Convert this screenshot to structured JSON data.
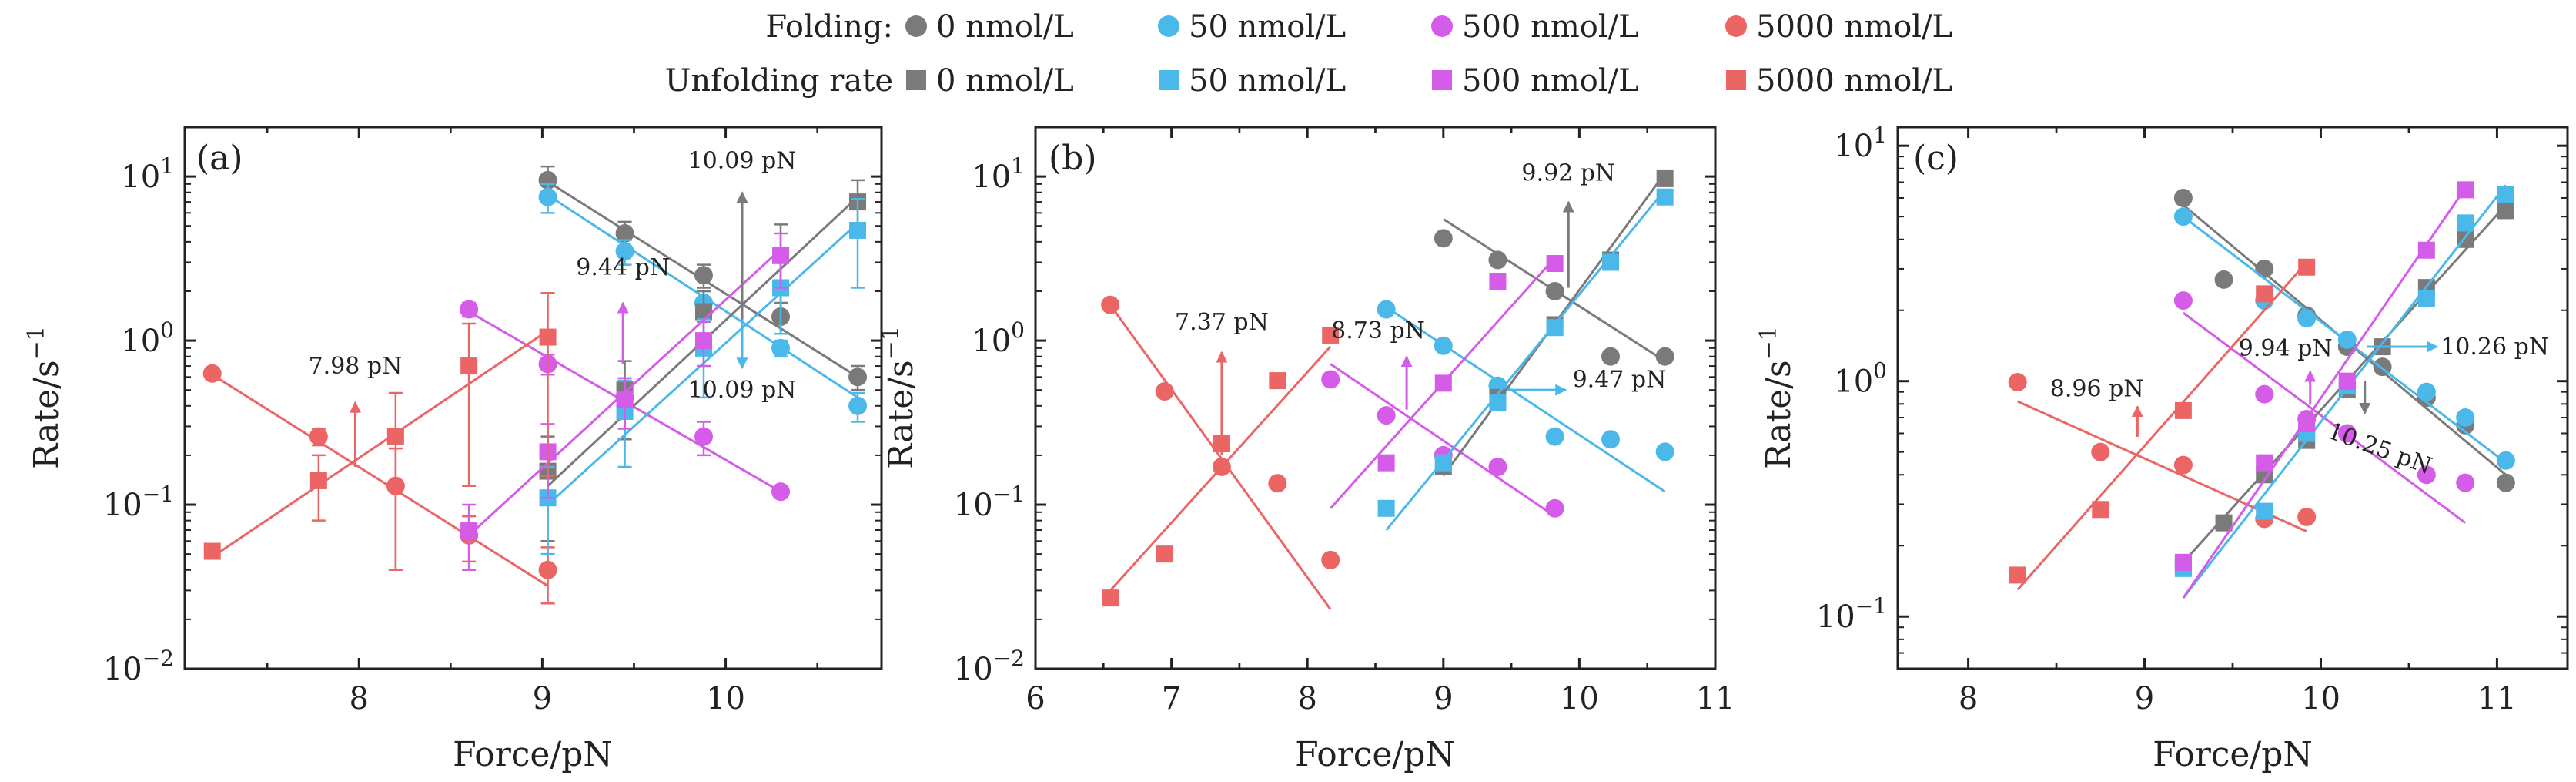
{
  "colors": {
    "c0": "#7a7a7a",
    "c50": "#4bb8ea",
    "c500": "#d45ce8",
    "c5000": "#ec6565",
    "axis": "#222222"
  },
  "legend": {
    "folding_label": "Folding:",
    "unfolding_label": "Unfolding rate",
    "entries": [
      {
        "label": "0 nmol/L",
        "color_key": "c0"
      },
      {
        "label": "50 nmol/L",
        "color_key": "c50"
      },
      {
        "label": "500 nmol/L",
        "color_key": "c500"
      },
      {
        "label": "5000 nmol/L",
        "color_key": "c5000"
      }
    ]
  },
  "chart_data": [
    {
      "panel": "(a)",
      "type": "scatter",
      "xlabel": "Force/pN",
      "ylabel": "Rate/s",
      "ylabel_sup": "−1",
      "yscale": "log",
      "xlim": [
        7.05,
        10.85
      ],
      "ylim": [
        0.01,
        20
      ],
      "xticks": [
        8,
        9,
        10
      ],
      "yticks": [
        {
          "v": 0.01,
          "base": "10",
          "exp": "−2"
        },
        {
          "v": 0.1,
          "base": "10",
          "exp": "−1"
        },
        {
          "v": 1,
          "base": "10",
          "exp": "0"
        },
        {
          "v": 10,
          "base": "10",
          "exp": "1"
        }
      ],
      "folding": [
        {
          "name": "0 nmol/L",
          "color_key": "c0",
          "x": [
            9.03,
            9.45,
            9.88,
            10.3,
            10.72
          ],
          "y": [
            9.5,
            4.5,
            2.5,
            1.4,
            0.6
          ],
          "err": [
            2.0,
            0.8,
            0.4,
            0.3,
            0.1
          ],
          "fit": [
            [
              9.03,
              9.3
            ],
            [
              10.72,
              0.6
            ]
          ]
        },
        {
          "name": "50 nmol/L",
          "color_key": "c50",
          "x": [
            9.03,
            9.45,
            9.88,
            10.3,
            10.72
          ],
          "y": [
            7.5,
            3.5,
            1.7,
            0.9,
            0.4
          ],
          "err": [
            1.5,
            0.6,
            0.3,
            0.1,
            0.08
          ],
          "fit": [
            [
              9.03,
              7.7
            ],
            [
              10.72,
              0.45
            ]
          ]
        },
        {
          "name": "500 nmol/L",
          "color_key": "c500",
          "x": [
            8.6,
            9.03,
            9.45,
            9.88,
            10.3
          ],
          "y": [
            1.55,
            0.72,
            0.45,
            0.26,
            0.12
          ],
          "err": [
            0.15,
            0.1,
            0.08,
            0.06,
            0.01
          ],
          "fit": [
            [
              8.6,
              1.5
            ],
            [
              10.3,
              0.12
            ]
          ]
        },
        {
          "name": "5000 nmol/L",
          "color_key": "c5000",
          "x": [
            7.2,
            7.78,
            8.2,
            8.6,
            9.03
          ],
          "y": [
            0.63,
            0.26,
            0.13,
            0.065,
            0.04
          ],
          "err": [
            0.05,
            0.03,
            0.09,
            0.02,
            0.015
          ],
          "fit": [
            [
              7.2,
              0.62
            ],
            [
              9.03,
              0.032
            ]
          ]
        }
      ],
      "unfolding": [
        {
          "name": "0 nmol/L",
          "color_key": "c0",
          "x": [
            9.03,
            9.45,
            9.88,
            10.3,
            10.72
          ],
          "y": [
            0.16,
            0.5,
            1.5,
            3.3,
            7.0
          ],
          "err": [
            0.1,
            0.25,
            0.5,
            1.8,
            2.5
          ],
          "fit": [
            [
              9.03,
              0.13
            ],
            [
              10.72,
              7.5
            ]
          ]
        },
        {
          "name": "50 nmol/L",
          "color_key": "c50",
          "x": [
            9.03,
            9.45,
            9.88,
            10.3,
            10.72
          ],
          "y": [
            0.11,
            0.37,
            0.9,
            2.1,
            4.7
          ],
          "err": [
            0.06,
            0.2,
            0.45,
            1.0,
            2.6
          ],
          "fit": [
            [
              9.03,
              0.1
            ],
            [
              10.72,
              5.2
            ]
          ]
        },
        {
          "name": "500 nmol/L",
          "color_key": "c500",
          "x": [
            8.6,
            9.03,
            9.45,
            9.88,
            10.3
          ],
          "y": [
            0.07,
            0.21,
            0.44,
            1.0,
            3.3
          ],
          "err": [
            0.03,
            0.1,
            0.15,
            0.3,
            1.2
          ],
          "fit": [
            [
              8.6,
              0.065
            ],
            [
              10.3,
              3.6
            ]
          ]
        },
        {
          "name": "5000 nmol/L",
          "color_key": "c5000",
          "x": [
            7.2,
            7.78,
            8.2,
            8.6,
            9.03
          ],
          "y": [
            0.052,
            0.14,
            0.26,
            0.7,
            1.05
          ],
          "err": [
            0.004,
            0.06,
            0.22,
            0.57,
            0.9
          ],
          "fit": [
            [
              7.2,
              0.048
            ],
            [
              9.03,
              1.15
            ]
          ]
        }
      ],
      "annotations": [
        {
          "text": "7.98 pN",
          "color_key": "c5000",
          "x": 7.98,
          "y0": 0.17,
          "y1": 0.42,
          "text_x": 7.98,
          "text_y": 0.7,
          "anchor": "middle"
        },
        {
          "text": "9.44 pN",
          "color_key": "c500",
          "x": 9.44,
          "y0": 0.72,
          "y1": 1.7,
          "text_x": 9.44,
          "text_y": 2.8,
          "anchor": "middle"
        },
        {
          "text": "10.09 pN",
          "color_key": "c0",
          "x": 10.09,
          "y0": 1.2,
          "y1": 8.0,
          "text_x": 10.09,
          "text_y": 12.5,
          "anchor": "middle"
        },
        {
          "text": "10.09 pN",
          "color_key": "c50",
          "x": 10.09,
          "y0": 1.35,
          "y1": 0.68,
          "text_x": 10.09,
          "text_y": 0.5,
          "anchor": "middle"
        }
      ]
    },
    {
      "panel": "(b)",
      "type": "scatter",
      "xlabel": "Force/pN",
      "ylabel": "Rate/s",
      "ylabel_sup": "−1",
      "yscale": "log",
      "xlim": [
        6.0,
        11.0
      ],
      "ylim": [
        0.01,
        20
      ],
      "xticks": [
        6,
        7,
        8,
        9,
        10,
        11
      ],
      "yticks": [
        {
          "v": 0.01,
          "base": "10",
          "exp": "−2"
        },
        {
          "v": 0.1,
          "base": "10",
          "exp": "−1"
        },
        {
          "v": 1,
          "base": "10",
          "exp": "0"
        },
        {
          "v": 10,
          "base": "10",
          "exp": "1"
        }
      ],
      "folding": [
        {
          "name": "0 nmol/L",
          "color_key": "c0",
          "x": [
            9.0,
            9.4,
            9.82,
            10.23,
            10.63
          ],
          "y": [
            4.2,
            3.1,
            2.0,
            0.8,
            0.8
          ],
          "err": [],
          "fit": [
            [
              9.0,
              5.5
            ],
            [
              10.63,
              0.75
            ]
          ]
        },
        {
          "name": "50 nmol/L",
          "color_key": "c50",
          "x": [
            8.58,
            9.0,
            9.4,
            9.82,
            10.23,
            10.63
          ],
          "y": [
            1.55,
            0.93,
            0.53,
            0.26,
            0.25,
            0.21
          ],
          "err": [],
          "fit": [
            [
              8.58,
              1.6
            ],
            [
              10.63,
              0.12
            ]
          ]
        },
        {
          "name": "500 nmol/L",
          "color_key": "c500",
          "x": [
            8.17,
            8.58,
            9.0,
            9.4,
            9.82
          ],
          "y": [
            0.58,
            0.35,
            0.2,
            0.17,
            0.095
          ],
          "err": [],
          "fit": [
            [
              8.17,
              0.72
            ],
            [
              9.82,
              0.085
            ]
          ]
        },
        {
          "name": "5000 nmol/L",
          "color_key": "c5000",
          "x": [
            6.55,
            6.95,
            7.37,
            7.78,
            8.17
          ],
          "y": [
            1.65,
            0.49,
            0.17,
            0.135,
            0.046
          ],
          "err": [],
          "fit": [
            [
              6.55,
              1.65
            ],
            [
              8.17,
              0.023
            ]
          ]
        }
      ],
      "unfolding": [
        {
          "name": "0 nmol/L",
          "color_key": "c0",
          "x": [
            9.0,
            9.4,
            9.82,
            10.23,
            10.63
          ],
          "y": [
            0.17,
            0.45,
            1.25,
            3.1,
            9.7
          ],
          "err": [],
          "fit": [
            [
              9.0,
              0.15
            ],
            [
              10.63,
              10.5
            ]
          ]
        },
        {
          "name": "50 nmol/L",
          "color_key": "c50",
          "x": [
            8.58,
            9.0,
            9.4,
            9.82,
            10.23,
            10.63
          ],
          "y": [
            0.095,
            0.18,
            0.42,
            1.2,
            3.0,
            7.5
          ],
          "err": [],
          "fit": [
            [
              8.58,
              0.07
            ],
            [
              10.63,
              8.3
            ]
          ]
        },
        {
          "name": "500 nmol/L",
          "color_key": "c500",
          "x": [
            8.58,
            9.0,
            9.4,
            9.82
          ],
          "y": [
            0.18,
            0.55,
            2.3,
            2.95
          ],
          "err": [],
          "fit": [
            [
              8.17,
              0.095
            ],
            [
              9.82,
              3.2
            ]
          ]
        },
        {
          "name": "5000 nmol/L",
          "color_key": "c5000",
          "x": [
            6.55,
            6.95,
            7.37,
            7.78,
            8.17
          ],
          "y": [
            0.027,
            0.05,
            0.235,
            0.57,
            1.08
          ],
          "err": [],
          "fit": [
            [
              6.55,
              0.03
            ],
            [
              8.17,
              0.92
            ]
          ]
        }
      ],
      "annotations": [
        {
          "text": "7.37 pN",
          "color_key": "c5000",
          "x": 7.37,
          "y0": 0.2,
          "y1": 0.85,
          "text_x": 7.37,
          "text_y": 1.3,
          "anchor": "middle"
        },
        {
          "text": "8.73 pN",
          "color_key": "c500",
          "x": 8.73,
          "y0": 0.38,
          "y1": 0.8,
          "text_x": 8.52,
          "text_y": 1.15,
          "anchor": "middle"
        },
        {
          "text": "9.92 pN",
          "color_key": "c0",
          "x": 9.92,
          "y0": 2.1,
          "y1": 7.0,
          "text_x": 9.92,
          "text_y": 10.5,
          "anchor": "middle"
        },
        {
          "text": "9.47 pN",
          "color_key": "c50",
          "x": 9.47,
          "y0": 0.5,
          "x1": 9.9,
          "text_x": 9.95,
          "text_y": 0.58,
          "anchor": "start",
          "horizontal": true
        }
      ]
    },
    {
      "panel": "(c)",
      "type": "scatter",
      "xlabel": "Force/pN",
      "ylabel": "Rate/s",
      "ylabel_sup": "−1",
      "yscale": "log",
      "xlim": [
        7.6,
        11.4
      ],
      "ylim": [
        0.06,
        12
      ],
      "xticks": [
        8,
        9,
        10,
        11
      ],
      "yticks": [
        {
          "v": 0.1,
          "base": "10",
          "exp": "−1"
        },
        {
          "v": 1,
          "base": "10",
          "exp": "0"
        },
        {
          "v": 10,
          "base": "10",
          "exp": "1"
        }
      ],
      "folding": [
        {
          "name": "0 nmol/L",
          "color_key": "c0",
          "x": [
            9.22,
            9.45,
            9.68,
            9.92,
            10.15,
            10.35,
            10.6,
            10.82,
            11.05
          ],
          "y": [
            6.0,
            2.7,
            3.0,
            1.9,
            1.4,
            1.15,
            0.85,
            0.65,
            0.37
          ],
          "err": [],
          "fit": [
            [
              9.22,
              5.6
            ],
            [
              11.05,
              0.4
            ]
          ]
        },
        {
          "name": "50 nmol/L",
          "color_key": "c50",
          "x": [
            9.22,
            9.68,
            9.92,
            10.15,
            10.6,
            10.82,
            11.05
          ],
          "y": [
            5.0,
            2.2,
            1.85,
            1.5,
            0.9,
            0.7,
            0.46
          ],
          "err": [],
          "fit": [
            [
              9.22,
              5.0
            ],
            [
              11.05,
              0.45
            ]
          ]
        },
        {
          "name": "500 nmol/L",
          "color_key": "c500",
          "x": [
            9.22,
            9.68,
            9.92,
            10.15,
            10.6,
            10.82
          ],
          "y": [
            2.2,
            0.88,
            0.69,
            0.6,
            0.4,
            0.37
          ],
          "err": [],
          "fit": [
            [
              9.22,
              1.95
            ],
            [
              10.82,
              0.25
            ]
          ]
        },
        {
          "name": "5000 nmol/L",
          "color_key": "c5000",
          "x": [
            8.28,
            8.75,
            9.22,
            9.68,
            9.92
          ],
          "y": [
            0.99,
            0.5,
            0.44,
            0.26,
            0.265
          ],
          "err": [],
          "fit": [
            [
              8.28,
              0.82
            ],
            [
              9.92,
              0.23
            ]
          ]
        }
      ],
      "unfolding": [
        {
          "name": "0 nmol/L",
          "color_key": "c0",
          "x": [
            9.22,
            9.45,
            9.68,
            9.92,
            10.15,
            10.35,
            10.6,
            10.82,
            11.05
          ],
          "y": [
            0.165,
            0.25,
            0.4,
            0.56,
            0.92,
            1.4,
            2.5,
            4.0,
            5.3
          ],
          "err": [],
          "fit": [
            [
              9.22,
              0.17
            ],
            [
              11.05,
              5.6
            ]
          ]
        },
        {
          "name": "50 nmol/L",
          "color_key": "c50",
          "x": [
            9.22,
            9.68,
            9.92,
            10.15,
            10.6,
            10.82,
            11.05
          ],
          "y": [
            0.16,
            0.28,
            0.6,
            0.96,
            2.25,
            4.7,
            6.2
          ],
          "err": [],
          "fit": [
            [
              9.22,
              0.12
            ],
            [
              11.05,
              6.8
            ]
          ]
        },
        {
          "name": "500 nmol/L",
          "color_key": "c500",
          "x": [
            9.22,
            9.68,
            9.92,
            10.15,
            10.6,
            10.82
          ],
          "y": [
            0.17,
            0.45,
            0.66,
            1.0,
            3.6,
            6.5
          ],
          "err": [],
          "fit": [
            [
              9.22,
              0.12
            ],
            [
              10.82,
              6.6
            ]
          ]
        },
        {
          "name": "5000 nmol/L",
          "color_key": "c5000",
          "x": [
            8.28,
            8.75,
            9.22,
            9.68,
            9.92
          ],
          "y": [
            0.15,
            0.285,
            0.75,
            2.35,
            3.05
          ],
          "err": [],
          "fit": [
            [
              8.28,
              0.13
            ],
            [
              9.92,
              3.2
            ]
          ]
        }
      ],
      "annotations": [
        {
          "text": "8.96 pN",
          "color_key": "c5000",
          "x": 8.96,
          "y0": 0.58,
          "y1": 0.78,
          "text_x": 8.73,
          "text_y": 0.93,
          "anchor": "middle"
        },
        {
          "text": "9.94 pN",
          "color_key": "c500",
          "x": 9.94,
          "y0": 0.8,
          "y1": 1.1,
          "text_x": 9.8,
          "text_y": 1.38,
          "anchor": "middle"
        },
        {
          "text": "10.25 pN",
          "color_key": "c0",
          "x": 10.25,
          "y0": 1.0,
          "y1": 0.73,
          "text_x": 10.32,
          "text_y": 0.52,
          "anchor": "middle",
          "rotate": 20
        },
        {
          "text": "10.26 pN",
          "color_key": "c50",
          "x": 10.26,
          "y0": 1.4,
          "x1": 10.66,
          "text_x": 10.68,
          "text_y": 1.4,
          "anchor": "start",
          "horizontal": true
        }
      ]
    }
  ]
}
